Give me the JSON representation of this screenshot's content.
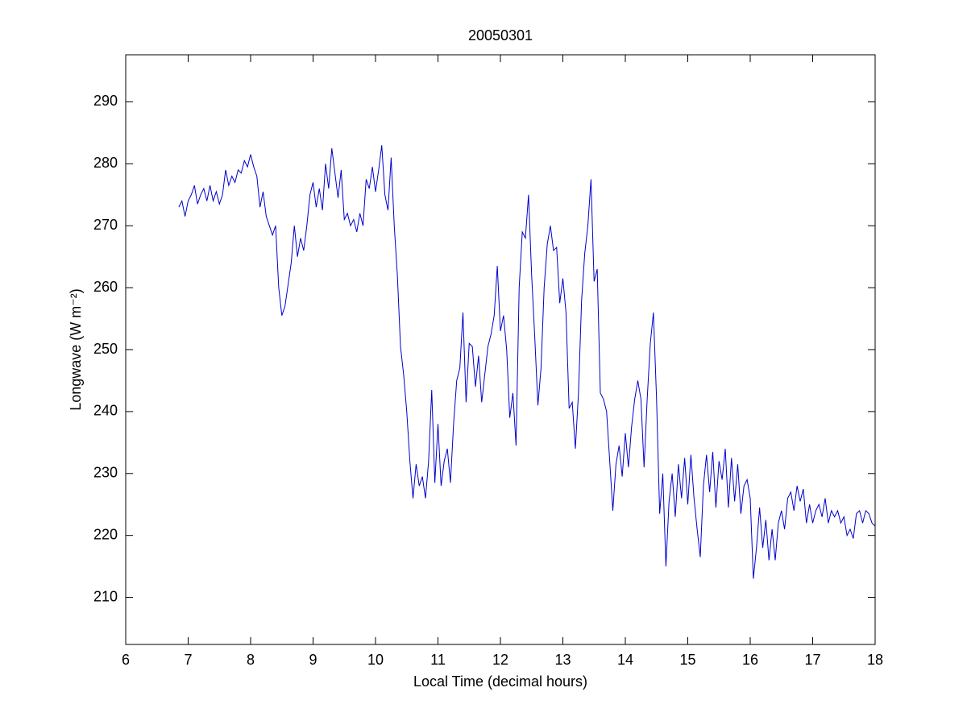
{
  "chart_data": {
    "type": "line",
    "title": "20050301",
    "xlabel": "Local Time (decimal hours)",
    "ylabel": "Longwave (W m⁻²)",
    "x": [
      6.85,
      6.9,
      6.95,
      7.0,
      7.05,
      7.1,
      7.15,
      7.2,
      7.25,
      7.3,
      7.35,
      7.4,
      7.45,
      7.5,
      7.55,
      7.6,
      7.65,
      7.7,
      7.75,
      7.8,
      7.85,
      7.9,
      7.95,
      8.0,
      8.05,
      8.1,
      8.15,
      8.2,
      8.25,
      8.3,
      8.35,
      8.4,
      8.45,
      8.5,
      8.55,
      8.6,
      8.65,
      8.7,
      8.75,
      8.8,
      8.85,
      8.9,
      8.95,
      9.0,
      9.05,
      9.1,
      9.15,
      9.2,
      9.25,
      9.3,
      9.35,
      9.4,
      9.45,
      9.5,
      9.55,
      9.6,
      9.65,
      9.7,
      9.75,
      9.8,
      9.85,
      9.9,
      9.95,
      10.0,
      10.05,
      10.1,
      10.15,
      10.2,
      10.25,
      10.3,
      10.35,
      10.4,
      10.45,
      10.5,
      10.55,
      10.6,
      10.65,
      10.7,
      10.75,
      10.8,
      10.85,
      10.9,
      10.95,
      11.0,
      11.05,
      11.1,
      11.15,
      11.2,
      11.25,
      11.3,
      11.35,
      11.4,
      11.45,
      11.5,
      11.55,
      11.6,
      11.65,
      11.7,
      11.75,
      11.8,
      11.85,
      11.9,
      11.95,
      12.0,
      12.05,
      12.1,
      12.15,
      12.2,
      12.25,
      12.3,
      12.35,
      12.4,
      12.45,
      12.5,
      12.55,
      12.6,
      12.65,
      12.7,
      12.75,
      12.8,
      12.85,
      12.9,
      12.95,
      13.0,
      13.05,
      13.1,
      13.15,
      13.2,
      13.25,
      13.3,
      13.35,
      13.4,
      13.45,
      13.5,
      13.55,
      13.6,
      13.65,
      13.7,
      13.75,
      13.8,
      13.85,
      13.9,
      13.95,
      14.0,
      14.05,
      14.1,
      14.15,
      14.2,
      14.25,
      14.3,
      14.35,
      14.4,
      14.45,
      14.5,
      14.55,
      14.6,
      14.65,
      14.7,
      14.75,
      14.8,
      14.85,
      14.9,
      14.95,
      15.0,
      15.05,
      15.1,
      15.15,
      15.2,
      15.25,
      15.3,
      15.35,
      15.4,
      15.45,
      15.5,
      15.55,
      15.6,
      15.65,
      15.7,
      15.75,
      15.8,
      15.85,
      15.9,
      15.95,
      16.0,
      16.05,
      16.1,
      16.15,
      16.2,
      16.25,
      16.3,
      16.35,
      16.4,
      16.45,
      16.5,
      16.55,
      16.6,
      16.65,
      16.7,
      16.75,
      16.8,
      16.85,
      16.9,
      16.95,
      17.0,
      17.05,
      17.1,
      17.15,
      17.2,
      17.25,
      17.3,
      17.35,
      17.4,
      17.45,
      17.5,
      17.55,
      17.6,
      17.65,
      17.7,
      17.75,
      17.8,
      17.85,
      17.9,
      17.95,
      18.0
    ],
    "values": [
      273,
      274,
      271.5,
      274,
      275,
      276.5,
      273.5,
      275,
      276,
      274,
      276.5,
      274,
      275.5,
      273.5,
      275,
      279,
      276.5,
      278,
      277,
      279,
      278.5,
      280.5,
      279.5,
      281.5,
      279.5,
      278,
      273,
      275.5,
      271.5,
      270,
      268.5,
      270,
      260,
      255.5,
      257,
      260.5,
      264,
      270,
      265,
      268,
      266,
      270,
      275,
      277,
      273,
      276,
      272.5,
      280,
      276,
      282.5,
      278.5,
      274.5,
      279,
      271,
      272,
      270,
      271,
      269,
      272,
      270,
      277.5,
      276,
      279.5,
      275.5,
      279,
      283,
      275,
      272.5,
      281,
      270,
      262,
      250.5,
      246,
      240,
      232,
      226,
      231.5,
      228,
      229.5,
      226,
      232,
      243.5,
      228.5,
      238,
      228,
      232,
      234,
      228.5,
      238,
      245,
      247,
      256,
      241.5,
      251,
      250.5,
      244,
      249,
      241.5,
      246,
      250.5,
      252.5,
      255.5,
      263.5,
      253,
      255.5,
      250,
      239,
      243,
      234.5,
      260,
      269,
      268,
      275,
      262,
      252,
      241,
      247,
      260,
      267,
      270,
      266,
      266.5,
      257.5,
      261.5,
      256,
      240.5,
      241.5,
      234,
      243,
      258,
      265.5,
      270,
      277.5,
      261,
      263,
      243,
      242,
      240,
      232,
      224,
      231.5,
      234.5,
      229.5,
      236.5,
      231,
      237.5,
      242,
      245,
      242,
      231,
      242,
      251,
      256,
      242,
      223.5,
      230,
      215,
      225.5,
      230,
      223,
      231.5,
      226,
      232.5,
      225,
      233,
      226,
      221,
      216.5,
      228,
      233,
      227,
      233.5,
      224.5,
      232,
      229,
      234,
      224.5,
      232.5,
      225.5,
      231.5,
      223.5,
      228,
      229,
      226,
      213,
      218,
      224.5,
      218,
      222.5,
      216,
      221,
      216,
      222,
      224,
      221,
      226,
      227,
      224,
      228,
      225.5,
      227.5,
      222,
      225,
      222,
      224,
      225,
      223,
      226,
      222,
      224,
      223,
      224,
      222,
      223,
      220,
      221,
      219.5,
      223.5,
      224,
      222,
      224,
      223.5,
      222,
      221.5
    ],
    "color": "#0000cc",
    "xlim": [
      6,
      18
    ],
    "xticks": [
      6,
      7,
      8,
      9,
      10,
      11,
      12,
      13,
      14,
      15,
      16,
      17,
      18
    ],
    "ylim": [
      202.4,
      297.6
    ],
    "yticks": [
      210,
      220,
      230,
      240,
      250,
      260,
      270,
      280,
      290
    ]
  }
}
